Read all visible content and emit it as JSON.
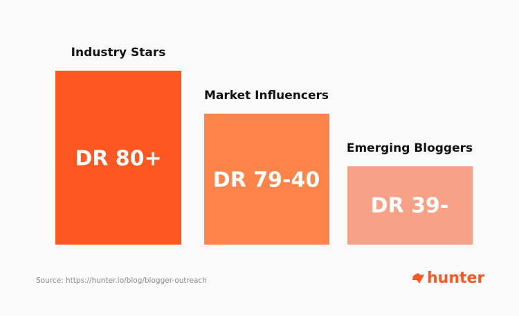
{
  "tiers": [
    {
      "title": "Industry Stars",
      "label": "DR 80+"
    },
    {
      "title": "Market Influencers",
      "label": "DR 79-40"
    },
    {
      "title": "Emerging Bloggers",
      "label": "DR 39-"
    }
  ],
  "source": "Source: https://hunter.io/blog/blogger-outreach",
  "brand": "hunter"
}
